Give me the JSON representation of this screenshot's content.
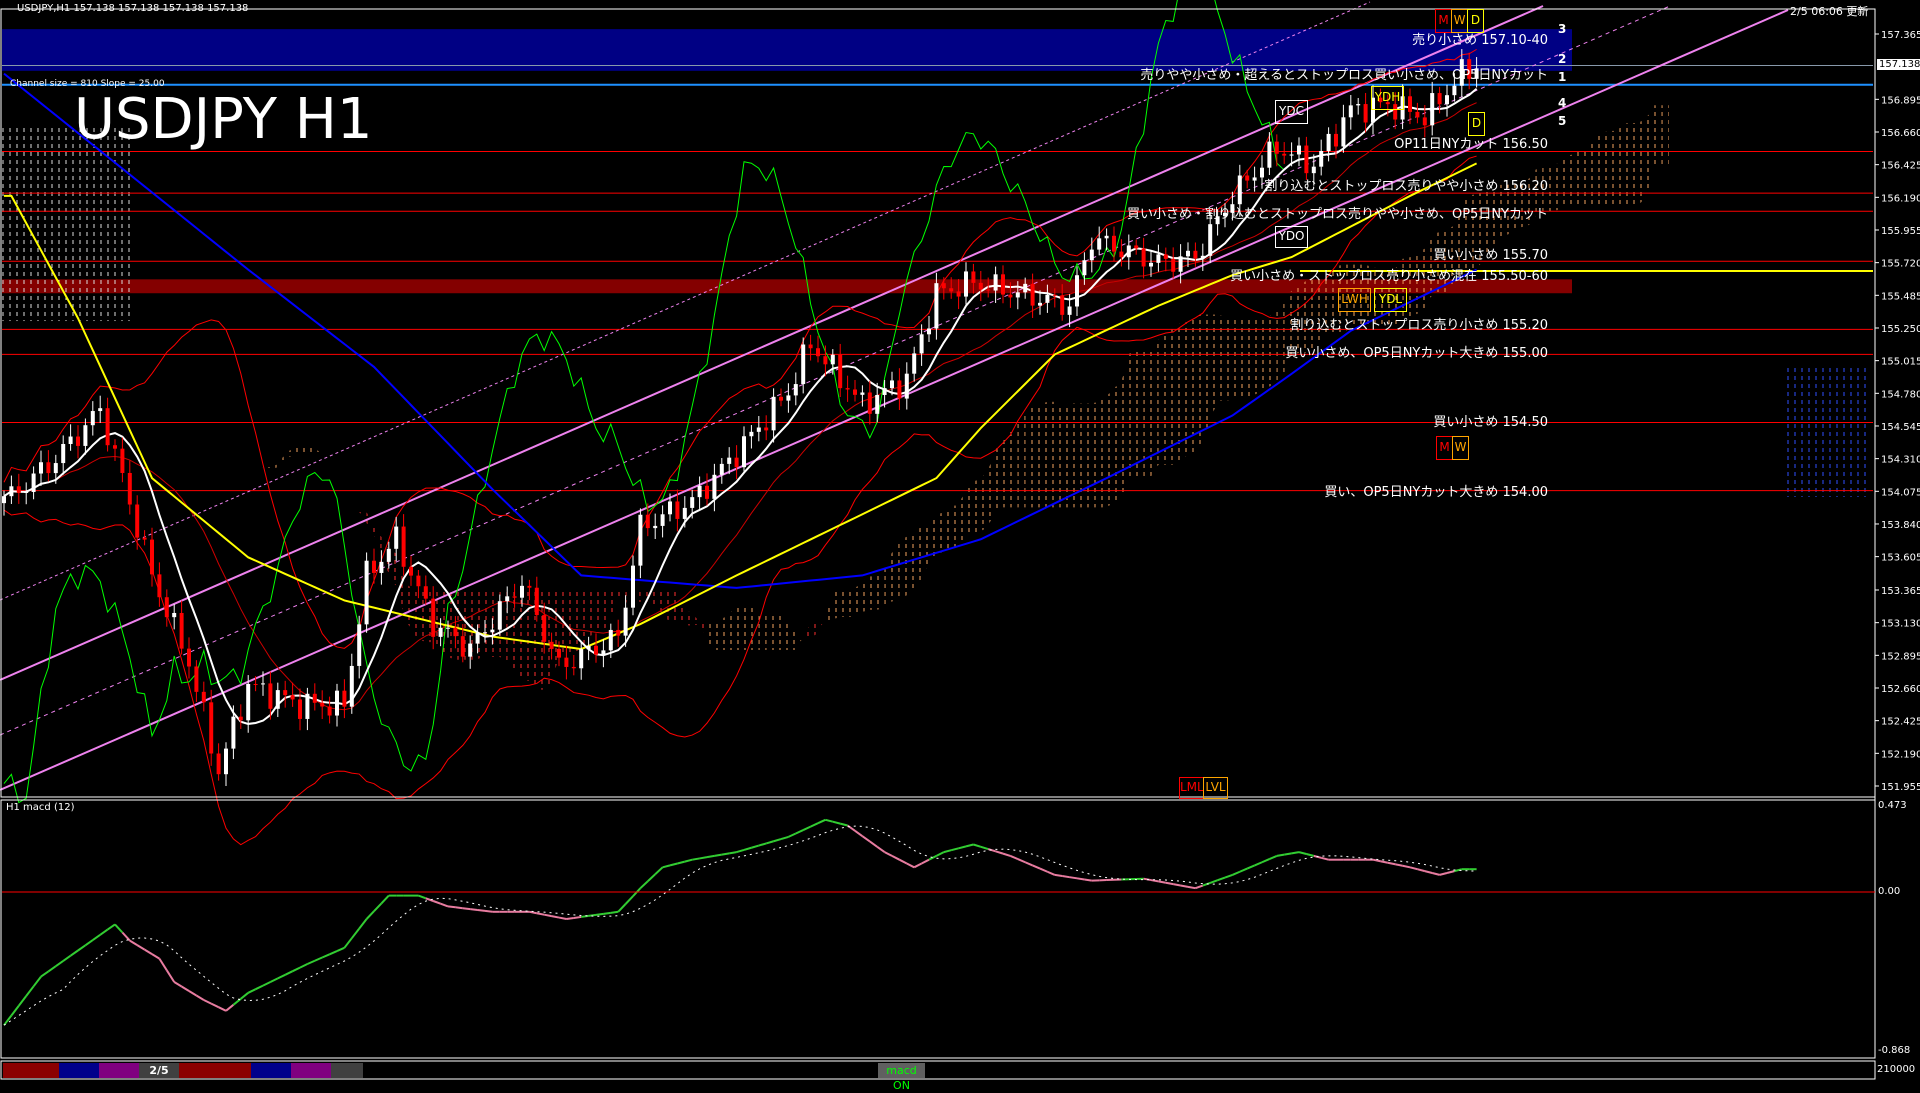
{
  "header": {
    "symbol_info": "USDJPY,H1  157.138 157.138 157.138 157.138",
    "update_time": "2/5 06:06 更新"
  },
  "title": "USDJPY H1",
  "channel_info": "Channel size = 810 Slope = 25.00",
  "current_price": "157.138",
  "price_axis_ticks": [
    "157.365",
    "156.895",
    "156.660",
    "156.425",
    "156.190",
    "155.955",
    "155.720",
    "155.485",
    "155.250",
    "155.015",
    "154.780",
    "154.545",
    "154.310",
    "154.075",
    "153.840",
    "153.605",
    "153.365",
    "153.130",
    "152.895",
    "152.660",
    "152.425",
    "152.190",
    "151.955"
  ],
  "macd_panel": {
    "label": "H1  macd (12)",
    "ticks": {
      "top": "0.473",
      "zero": "0.00",
      "bottom": "-0.868"
    }
  },
  "volume_axis": "210000",
  "annotations": [
    {
      "text": "売り小さめ 157.10-40",
      "price": 157.25
    },
    {
      "text": "売りやや小さめ・超えるとストップロス買い小さめ、OP5日NYカット",
      "price": 157.0
    },
    {
      "text": "OP11日NYカット 156.50",
      "price": 156.5
    },
    {
      "text": "割り込むとストップロス売りやや小さめ 156.20",
      "price": 156.2
    },
    {
      "text": "買い小さめ・割り込むとストップロス売りやや小さめ、OP5日NYカット",
      "price": 156.0
    },
    {
      "text": "買い小さめ 155.70",
      "price": 155.7
    },
    {
      "text": "買い小さめ・ストップロス売り小さめ混在 155.50-60",
      "price": 155.55
    },
    {
      "text": "割り込むとストップロス売り小さめ 155.20",
      "price": 155.2
    },
    {
      "text": "買い小さめ、OP5日NYカット大きめ 155.00",
      "price": 155.0
    },
    {
      "text": "買い小さめ 154.50",
      "price": 154.5
    },
    {
      "text": "買い、OP5日NYカット大きめ 154.00",
      "price": 154.0
    }
  ],
  "level_lines": [
    156.52,
    156.22,
    156.09,
    155.73,
    155.24,
    155.06,
    154.57,
    154.08
  ],
  "zones": [
    {
      "range": [
        157.1,
        157.4
      ],
      "color": "#00008b"
    },
    {
      "range": [
        155.5,
        155.6
      ],
      "color": "#8b0000"
    }
  ],
  "channel_markers": [
    "3",
    "2",
    "1",
    "4",
    "5"
  ],
  "boxes": {
    "m": "M",
    "w": "W",
    "d": "D",
    "ydh": "YDH",
    "ydc": "YDC",
    "ydo": "YDO",
    "ydl": "YDL",
    "lwh": "LWH",
    "d2": "D",
    "m2": "M",
    "w2": "W",
    "lml": "LML",
    "lvl": "LVL"
  },
  "colors": {
    "bull": "#ffffff",
    "bear": "#ff0000",
    "fast_ma": "#ffffff",
    "mid_ma": "#ffff00",
    "slow_ma": "#0000ff",
    "channel": "#ee82ee",
    "macd_up": "#32cd32",
    "macd_down": "#e87ca0",
    "chikou": "#00ff00"
  },
  "bottom_bar": {
    "page": "2/5",
    "macd_button": "macd ON"
  },
  "chart_data": {
    "type": "candlestick",
    "symbol": "USDJPY",
    "timeframe": "H1",
    "price_keypoints": [
      {
        "bar": 1,
        "close": 154.04
      },
      {
        "bar": 7,
        "close": 154.31
      },
      {
        "bar": 13,
        "close": 154.66
      },
      {
        "bar": 16,
        "close": 154.17
      },
      {
        "bar": 20,
        "close": 153.47
      },
      {
        "bar": 25,
        "close": 152.85
      },
      {
        "bar": 29,
        "close": 152.06
      },
      {
        "bar": 33,
        "close": 152.68
      },
      {
        "bar": 40,
        "close": 152.54
      },
      {
        "bar": 46,
        "close": 152.54
      },
      {
        "bar": 49,
        "close": 153.47
      },
      {
        "bar": 53,
        "close": 153.73
      },
      {
        "bar": 58,
        "close": 153.12
      },
      {
        "bar": 63,
        "close": 152.94
      },
      {
        "bar": 70,
        "close": 153.43
      },
      {
        "bar": 75,
        "close": 152.81
      },
      {
        "bar": 83,
        "close": 153.03
      },
      {
        "bar": 86,
        "close": 153.82
      },
      {
        "bar": 93,
        "close": 154.0
      },
      {
        "bar": 99,
        "close": 154.35
      },
      {
        "bar": 106,
        "close": 154.79
      },
      {
        "bar": 109,
        "close": 155.14
      },
      {
        "bar": 116,
        "close": 154.7
      },
      {
        "bar": 122,
        "close": 154.88
      },
      {
        "bar": 126,
        "close": 155.5
      },
      {
        "bar": 131,
        "close": 155.58
      },
      {
        "bar": 137,
        "close": 155.5
      },
      {
        "bar": 144,
        "close": 155.41
      },
      {
        "bar": 147,
        "close": 155.89
      },
      {
        "bar": 156,
        "close": 155.72
      },
      {
        "bar": 161,
        "close": 155.76
      },
      {
        "bar": 166,
        "close": 156.2
      },
      {
        "bar": 172,
        "close": 156.55
      },
      {
        "bar": 177,
        "close": 156.42
      },
      {
        "bar": 182,
        "close": 156.82
      },
      {
        "bar": 187,
        "close": 156.86
      },
      {
        "bar": 192,
        "close": 156.77
      },
      {
        "bar": 197,
        "close": 157.08
      },
      {
        "bar": 199,
        "close": 157.14
      }
    ],
    "ma_mid_keypoints": [
      {
        "bar": 1,
        "v": 156.2
      },
      {
        "bar": 10,
        "v": 155.32
      },
      {
        "bar": 20,
        "v": 154.17
      },
      {
        "bar": 33,
        "v": 153.6
      },
      {
        "bar": 46,
        "v": 153.29
      },
      {
        "bar": 66,
        "v": 153.03
      },
      {
        "bar": 78,
        "v": 152.94
      },
      {
        "bar": 86,
        "v": 153.12
      },
      {
        "bar": 99,
        "v": 153.47
      },
      {
        "bar": 116,
        "v": 153.91
      },
      {
        "bar": 126,
        "v": 154.17
      },
      {
        "bar": 132,
        "v": 154.53
      },
      {
        "bar": 142,
        "v": 155.06
      },
      {
        "bar": 156,
        "v": 155.41
      },
      {
        "bar": 166,
        "v": 155.63
      },
      {
        "bar": 174,
        "v": 155.76
      },
      {
        "bar": 182,
        "v": 155.98
      },
      {
        "bar": 190,
        "v": 156.2
      },
      {
        "bar": 200,
        "v": 156.46
      }
    ],
    "ma_slow_keypoints": [
      {
        "bar": 0,
        "v": 157.08
      },
      {
        "bar": 33,
        "v": 155.67
      },
      {
        "bar": 50,
        "v": 154.97
      },
      {
        "bar": 66,
        "v": 154.09
      },
      {
        "bar": 78,
        "v": 153.47
      },
      {
        "bar": 99,
        "v": 153.38
      },
      {
        "bar": 116,
        "v": 153.47
      },
      {
        "bar": 132,
        "v": 153.73
      },
      {
        "bar": 149,
        "v": 154.17
      },
      {
        "bar": 166,
        "v": 154.62
      },
      {
        "bar": 174,
        "v": 154.92
      },
      {
        "bar": 182,
        "v": 155.23
      },
      {
        "bar": 199,
        "v": 155.67
      }
    ],
    "macd_keypoints": [
      {
        "bar": 0,
        "v": -0.74
      },
      {
        "bar": 5,
        "v": -0.47
      },
      {
        "bar": 15,
        "v": -0.18
      },
      {
        "bar": 17,
        "v": -0.27
      },
      {
        "bar": 21,
        "v": -0.37
      },
      {
        "bar": 23,
        "v": -0.5
      },
      {
        "bar": 27,
        "v": -0.6
      },
      {
        "bar": 30,
        "v": -0.66
      },
      {
        "bar": 33,
        "v": -0.56
      },
      {
        "bar": 41,
        "v": -0.4
      },
      {
        "bar": 46,
        "v": -0.31
      },
      {
        "bar": 49,
        "v": -0.15
      },
      {
        "bar": 52,
        "v": -0.02
      },
      {
        "bar": 56,
        "v": -0.02
      },
      {
        "bar": 60,
        "v": -0.08
      },
      {
        "bar": 66,
        "v": -0.11
      },
      {
        "bar": 71,
        "v": -0.11
      },
      {
        "bar": 76,
        "v": -0.15
      },
      {
        "bar": 83,
        "v": -0.11
      },
      {
        "bar": 86,
        "v": 0.02
      },
      {
        "bar": 89,
        "v": 0.13
      },
      {
        "bar": 93,
        "v": 0.17
      },
      {
        "bar": 99,
        "v": 0.21
      },
      {
        "bar": 106,
        "v": 0.29
      },
      {
        "bar": 111,
        "v": 0.38
      },
      {
        "bar": 114,
        "v": 0.35
      },
      {
        "bar": 119,
        "v": 0.21
      },
      {
        "bar": 123,
        "v": 0.13
      },
      {
        "bar": 127,
        "v": 0.21
      },
      {
        "bar": 131,
        "v": 0.25
      },
      {
        "bar": 136,
        "v": 0.19
      },
      {
        "bar": 142,
        "v": 0.09
      },
      {
        "bar": 147,
        "v": 0.06
      },
      {
        "bar": 154,
        "v": 0.07
      },
      {
        "bar": 161,
        "v": 0.02
      },
      {
        "bar": 166,
        "v": 0.09
      },
      {
        "bar": 172,
        "v": 0.19
      },
      {
        "bar": 175,
        "v": 0.21
      },
      {
        "bar": 179,
        "v": 0.17
      },
      {
        "bar": 185,
        "v": 0.17
      },
      {
        "bar": 190,
        "v": 0.13
      },
      {
        "bar": 194,
        "v": 0.09
      },
      {
        "bar": 197,
        "v": 0.12
      },
      {
        "bar": 199,
        "v": 0.12
      }
    ],
    "ylim": [
      151.955,
      157.365
    ],
    "macd_ylim": [
      -0.868,
      0.473
    ]
  }
}
